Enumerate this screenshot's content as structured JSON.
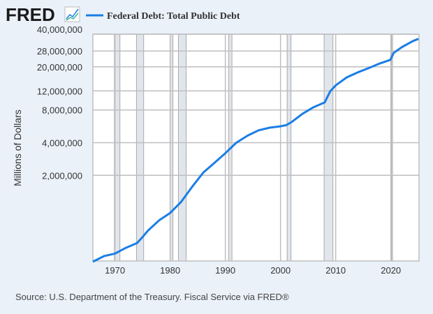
{
  "header": {
    "logo": "FRED",
    "legend_label": "Federal Debt: Total Public Debt"
  },
  "source": "Source: U.S. Department of the Treasury. Fiscal Service via FRED®",
  "colors": {
    "line": "#1a7ee6",
    "recession": "#e1e6ec",
    "grid": "#bfbfbf",
    "background": "#eaf1f9"
  },
  "chart_data": {
    "type": "line",
    "title": "Federal Debt: Total Public Debt",
    "ylabel": "Millions of Dollars",
    "xlabel": "",
    "yscale": "log",
    "xlim": [
      1966,
      2025.1
    ],
    "ylim": [
      325000,
      40000000
    ],
    "yticks": [
      40000000,
      28000000,
      20000000,
      12000000,
      8000000,
      4000000,
      2000000
    ],
    "ytick_labels": [
      "40,000,000",
      "28,000,000",
      "20,000,000",
      "12,000,000",
      "8,000,000",
      "4,000,000",
      "2,000,000"
    ],
    "xticks": [
      1970,
      1980,
      1990,
      2000,
      2010,
      2020
    ],
    "xtick_labels": [
      "1970",
      "1980",
      "1990",
      "2000",
      "2010",
      "2020"
    ],
    "recessions": [
      [
        1969.9,
        1970.9
      ],
      [
        1973.9,
        1975.2
      ],
      [
        1980.0,
        1980.5
      ],
      [
        1981.5,
        1982.9
      ],
      [
        1990.6,
        1991.2
      ],
      [
        2001.2,
        2001.9
      ],
      [
        2007.9,
        2009.5
      ],
      [
        2020.1,
        2020.3
      ]
    ],
    "series": [
      {
        "name": "Federal Debt: Total Public Debt",
        "x": [
          1966,
          1968,
          1970,
          1972,
          1974,
          1975,
          1976,
          1978,
          1980,
          1982,
          1984,
          1986,
          1988,
          1990,
          1992,
          1994,
          1996,
          1998,
          2000,
          2001,
          2002,
          2004,
          2006,
          2008,
          2009,
          2010,
          2012,
          2014,
          2016,
          2018,
          2019.9,
          2020.5,
          2022,
          2024,
          2025
        ],
        "values": [
          320000,
          360000,
          380000,
          430000,
          475000,
          540000,
          620000,
          770000,
          900000,
          1140000,
          1570000,
          2120000,
          2600000,
          3200000,
          4000000,
          4640000,
          5200000,
          5500000,
          5660000,
          5800000,
          6200000,
          7400000,
          8500000,
          9400000,
          11900000,
          13500000,
          16000000,
          17800000,
          19500000,
          21500000,
          23200000,
          26900000,
          30400000,
          34600000,
          36200000
        ]
      }
    ]
  }
}
